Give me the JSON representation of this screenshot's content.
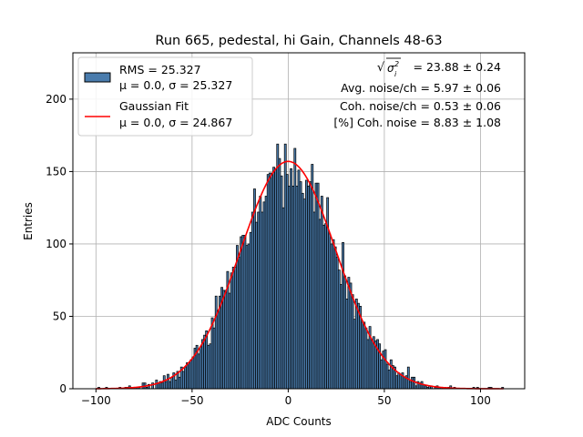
{
  "chart_data": {
    "type": "bar",
    "title": "Run 665, pedestal, hi Gain, Channels 48-63",
    "xlabel": "ADC Counts",
    "ylabel": "Entries",
    "xlim": [
      -112,
      123
    ],
    "ylim": [
      0,
      232
    ],
    "xticks": [
      -100,
      -50,
      0,
      50,
      100
    ],
    "yticks": [
      0,
      50,
      100,
      150,
      200
    ],
    "grid": true,
    "bin_width": 1,
    "histogram": {
      "rms": 25.327,
      "mean": 0.0,
      "sigma": 25.327,
      "range": [
        -100,
        112
      ],
      "edge_color": "#000000",
      "face_color": "#4a7cad"
    },
    "gaussian_fit": {
      "mean": 0.0,
      "sigma": 24.867,
      "amplitude": 157,
      "color": "#ff0000"
    },
    "legend": {
      "placement": "top-left",
      "entries": [
        {
          "line1": "RMS = 25.327",
          "line2": "μ = 0.0, σ = 25.327",
          "swatch": "patch"
        },
        {
          "line1": "Gaussian Fit",
          "line2": "μ = 0.0, σ = 24.867",
          "swatch": "line"
        }
      ]
    },
    "annotations": [
      {
        "id": "sigma",
        "text": "= 23.88 ± 0.24",
        "prefix": "√σ²ᵢ"
      },
      {
        "id": "avg",
        "text": "Avg. noise/ch = 5.97 ± 0.06"
      },
      {
        "id": "coh",
        "text": "Coh. noise/ch = 0.53 ± 0.06"
      },
      {
        "id": "pct",
        "text": "[%] Coh. noise = 8.83 ± 1.08"
      }
    ]
  }
}
